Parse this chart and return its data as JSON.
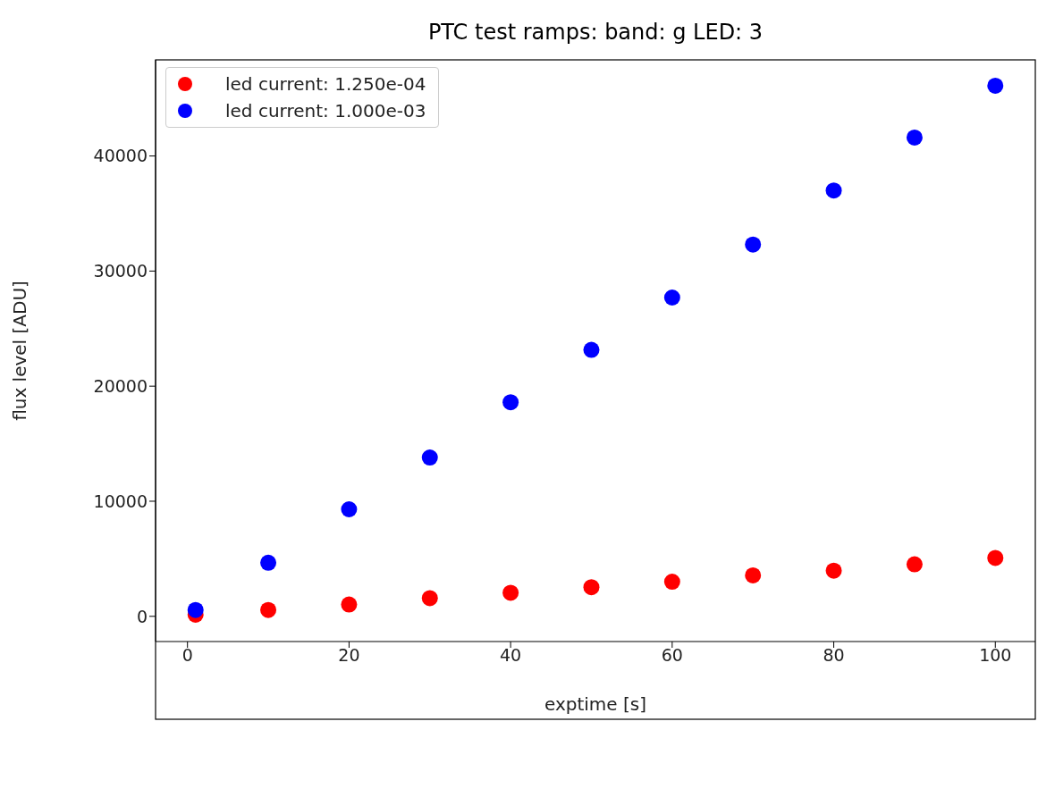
{
  "chart_data": {
    "type": "scatter",
    "title": "PTC test ramps: band: g LED: 3",
    "xlabel": "exptime [s]",
    "ylabel": "flux level [ADU]",
    "x": [
      1,
      10,
      20,
      30,
      40,
      50,
      60,
      70,
      80,
      90,
      100
    ],
    "series": [
      {
        "name": "led current: 1.250e-04",
        "color": "#ff0000",
        "values": [
          140,
          550,
          1030,
          1580,
          2050,
          2530,
          3010,
          3560,
          3970,
          4520,
          5070
        ]
      },
      {
        "name": "led current: 1.000e-03",
        "color": "#0000ff",
        "values": [
          550,
          4660,
          9300,
          13800,
          18600,
          23150,
          27700,
          32300,
          37000,
          41600,
          46100
        ]
      }
    ],
    "xlim": [
      -3.95,
      104.95
    ],
    "xticks": [
      0,
      20,
      40,
      60,
      80,
      100
    ],
    "ylim": [
      -2190,
      48350
    ],
    "yticks": [
      0,
      10000,
      20000,
      30000,
      40000
    ],
    "grid": false,
    "legend": "top left",
    "marker": "circle"
  }
}
